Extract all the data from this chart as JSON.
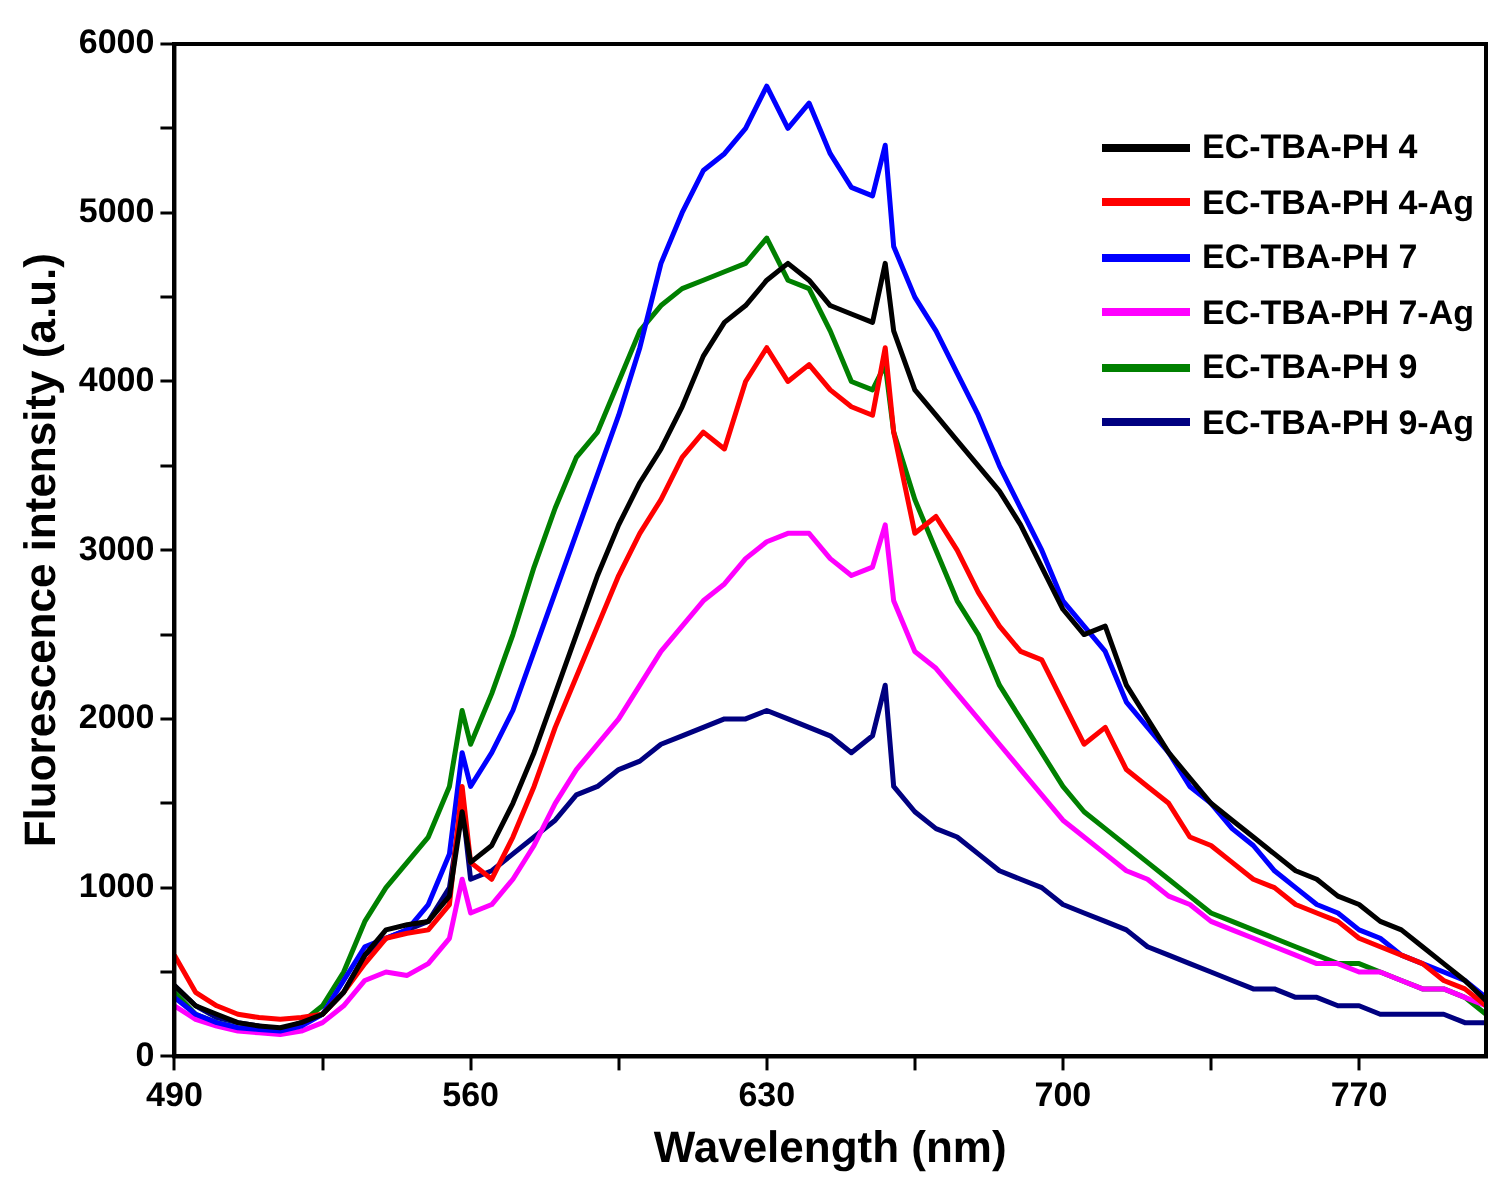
{
  "chart_data": {
    "type": "line",
    "xlabel": "Wavelength (nm)",
    "ylabel": "Fluorescence intensity (a.u.)",
    "x": [
      490,
      495,
      500,
      505,
      510,
      515,
      520,
      525,
      530,
      535,
      540,
      545,
      550,
      555,
      558,
      560,
      565,
      570,
      575,
      580,
      585,
      590,
      595,
      600,
      605,
      610,
      615,
      620,
      625,
      630,
      635,
      640,
      645,
      650,
      655,
      658,
      660,
      665,
      670,
      675,
      680,
      685,
      690,
      695,
      700,
      705,
      710,
      715,
      720,
      725,
      730,
      735,
      740,
      745,
      750,
      755,
      760,
      765,
      770,
      775,
      780,
      785,
      790,
      795,
      800
    ],
    "series": [
      {
        "name": "EC-TBA-PH 4",
        "color": "#000000",
        "values": [
          420,
          300,
          250,
          200,
          180,
          170,
          200,
          250,
          380,
          600,
          750,
          780,
          800,
          950,
          1450,
          1150,
          1250,
          1500,
          1800,
          2150,
          2500,
          2850,
          3150,
          3400,
          3600,
          3850,
          4150,
          4350,
          4450,
          4600,
          4700,
          4600,
          4450,
          4400,
          4350,
          4700,
          4300,
          3950,
          3800,
          3650,
          3500,
          3350,
          3150,
          2900,
          2650,
          2500,
          2550,
          2200,
          2000,
          1800,
          1650,
          1500,
          1400,
          1300,
          1200,
          1100,
          1050,
          950,
          900,
          800,
          750,
          650,
          550,
          450,
          330
        ]
      },
      {
        "name": "EC-TBA-PH 4-Ag",
        "color": "#ff0000",
        "values": [
          600,
          380,
          300,
          250,
          230,
          220,
          230,
          250,
          380,
          550,
          700,
          730,
          750,
          900,
          1600,
          1150,
          1050,
          1300,
          1600,
          1950,
          2250,
          2550,
          2850,
          3100,
          3300,
          3550,
          3700,
          3600,
          4000,
          4200,
          4000,
          4100,
          3950,
          3850,
          3800,
          4200,
          3700,
          3100,
          3200,
          3000,
          2750,
          2550,
          2400,
          2350,
          2100,
          1850,
          1950,
          1700,
          1600,
          1500,
          1300,
          1250,
          1150,
          1050,
          1000,
          900,
          850,
          800,
          700,
          650,
          600,
          550,
          450,
          400,
          300
        ]
      },
      {
        "name": "EC-TBA-PH 7",
        "color": "#0000ff",
        "values": [
          350,
          250,
          200,
          170,
          160,
          150,
          180,
          250,
          450,
          650,
          700,
          750,
          900,
          1200,
          1800,
          1600,
          1800,
          2050,
          2400,
          2750,
          3100,
          3450,
          3800,
          4200,
          4700,
          5000,
          5250,
          5350,
          5500,
          5750,
          5500,
          5650,
          5350,
          5150,
          5100,
          5400,
          4800,
          4500,
          4300,
          4050,
          3800,
          3500,
          3250,
          3000,
          2700,
          2550,
          2400,
          2100,
          1950,
          1800,
          1600,
          1500,
          1350,
          1250,
          1100,
          1000,
          900,
          850,
          750,
          700,
          600,
          550,
          500,
          450,
          350
        ]
      },
      {
        "name": "EC-TBA-PH 7-Ag",
        "color": "#ff00ff",
        "values": [
          300,
          220,
          180,
          150,
          140,
          130,
          150,
          200,
          300,
          450,
          500,
          480,
          550,
          700,
          1050,
          850,
          900,
          1050,
          1250,
          1500,
          1700,
          1850,
          2000,
          2200,
          2400,
          2550,
          2700,
          2800,
          2950,
          3050,
          3100,
          3100,
          2950,
          2850,
          2900,
          3150,
          2700,
          2400,
          2300,
          2150,
          2000,
          1850,
          1700,
          1550,
          1400,
          1300,
          1200,
          1100,
          1050,
          950,
          900,
          800,
          750,
          700,
          650,
          600,
          550,
          550,
          500,
          500,
          450,
          400,
          400,
          350,
          300
        ]
      },
      {
        "name": "EC-TBA-PH 9",
        "color": "#008000",
        "values": [
          380,
          250,
          200,
          170,
          160,
          150,
          200,
          300,
          500,
          800,
          1000,
          1150,
          1300,
          1600,
          2050,
          1850,
          2150,
          2500,
          2900,
          3250,
          3550,
          3700,
          4000,
          4300,
          4450,
          4550,
          4600,
          4650,
          4700,
          4850,
          4600,
          4550,
          4300,
          4000,
          3950,
          4100,
          3700,
          3300,
          3000,
          2700,
          2500,
          2200,
          2000,
          1800,
          1600,
          1450,
          1350,
          1250,
          1150,
          1050,
          950,
          850,
          800,
          750,
          700,
          650,
          600,
          550,
          550,
          500,
          450,
          400,
          400,
          350,
          250
        ]
      },
      {
        "name": "EC-TBA-PH 9-Ag",
        "color": "#000080",
        "values": [
          420,
          300,
          230,
          200,
          180,
          160,
          200,
          250,
          380,
          600,
          700,
          750,
          800,
          1000,
          1500,
          1050,
          1100,
          1200,
          1300,
          1400,
          1550,
          1600,
          1700,
          1750,
          1850,
          1900,
          1950,
          2000,
          2000,
          2050,
          2000,
          1950,
          1900,
          1800,
          1900,
          2200,
          1600,
          1450,
          1350,
          1300,
          1200,
          1100,
          1050,
          1000,
          900,
          850,
          800,
          750,
          650,
          600,
          550,
          500,
          450,
          400,
          400,
          350,
          350,
          300,
          300,
          250,
          250,
          250,
          250,
          200,
          200
        ]
      }
    ],
    "xlim": [
      490,
      800
    ],
    "xticks": [
      490,
      {
        "value": 525,
        "label": null
      },
      560,
      {
        "value": 595,
        "label": null
      },
      630,
      {
        "value": 665,
        "label": null
      },
      700,
      {
        "value": 735,
        "label": null
      },
      770
    ],
    "ylim": [
      0,
      6000
    ],
    "yticks": [
      0,
      {
        "value": 500,
        "label": null
      },
      1000,
      {
        "value": 1500,
        "label": null
      },
      2000,
      {
        "value": 2500,
        "label": null
      },
      3000,
      {
        "value": 3500,
        "label": null
      },
      4000,
      {
        "value": 4500,
        "label": null
      },
      5000,
      {
        "value": 5500,
        "label": null
      },
      6000
    ],
    "grid": false,
    "legend": "top right",
    "marker": "none",
    "line_style": "solid"
  }
}
